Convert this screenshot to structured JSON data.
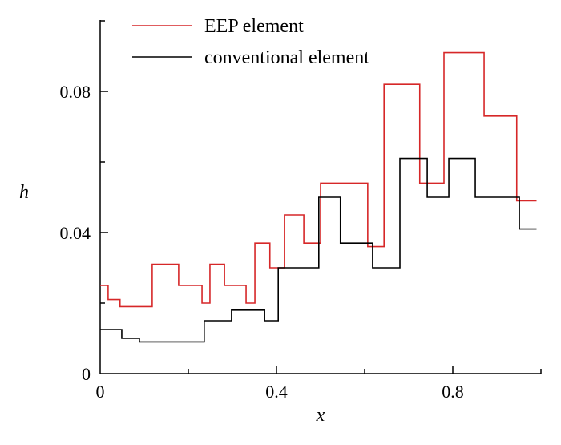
{
  "chart_data": {
    "type": "line",
    "step": true,
    "title": "",
    "xlabel": "x",
    "ylabel": "h",
    "xlim": [
      0,
      1
    ],
    "ylim": [
      0,
      0.1
    ],
    "xticks": [
      0,
      0.4,
      0.8
    ],
    "xtick_labels": [
      "0",
      "0.4",
      "0.8"
    ],
    "yticks": [
      0,
      0.04,
      0.08
    ],
    "ytick_labels": [
      "0",
      "0.04",
      "0.08"
    ],
    "legend_position": "top",
    "series": [
      {
        "name": "EEP element",
        "color": "#d62728",
        "x": [
          0,
          0.018,
          0.045,
          0.118,
          0.178,
          0.231,
          0.249,
          0.282,
          0.331,
          0.351,
          0.385,
          0.418,
          0.462,
          0.5,
          0.607,
          0.644,
          0.725,
          0.78,
          0.871,
          0.945,
          0.99
        ],
        "y": [
          0.025,
          0.021,
          0.019,
          0.031,
          0.025,
          0.02,
          0.031,
          0.025,
          0.02,
          0.037,
          0.03,
          0.045,
          0.037,
          0.054,
          0.036,
          0.082,
          0.054,
          0.091,
          0.073,
          0.049,
          0.049
        ]
      },
      {
        "name": "conventional element",
        "color": "#000000",
        "x": [
          0,
          0.049,
          0.089,
          0.236,
          0.298,
          0.373,
          0.404,
          0.496,
          0.545,
          0.618,
          0.68,
          0.742,
          0.791,
          0.851,
          0.951,
          0.99
        ],
        "y": [
          0.0125,
          0.01,
          0.009,
          0.015,
          0.018,
          0.015,
          0.03,
          0.05,
          0.037,
          0.03,
          0.061,
          0.05,
          0.061,
          0.05,
          0.041,
          0.041
        ]
      }
    ]
  }
}
